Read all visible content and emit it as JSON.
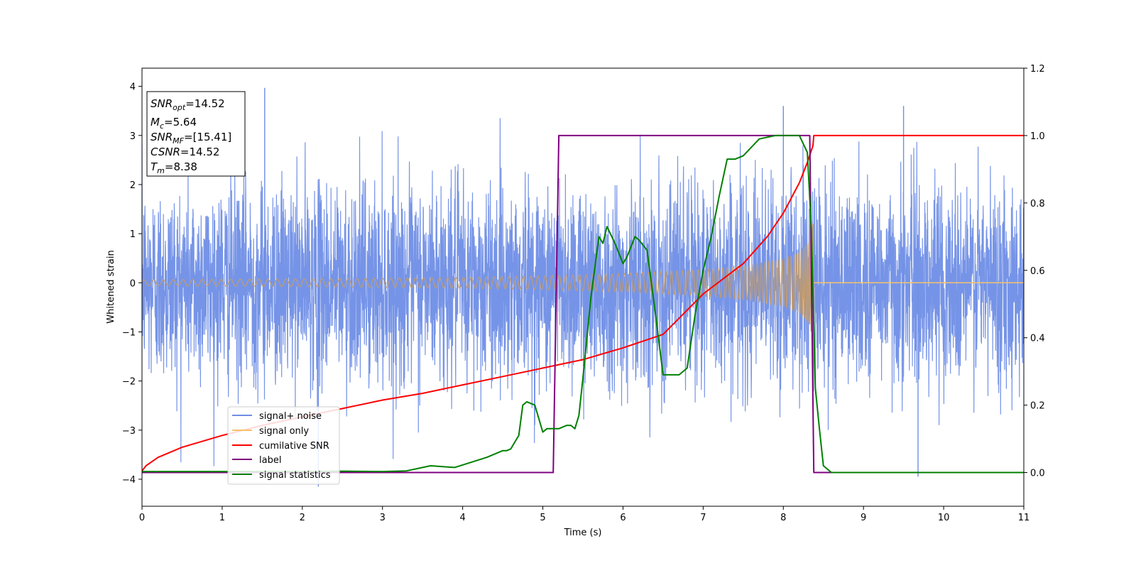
{
  "chart_data": {
    "type": "line",
    "xlabel": "Time (s)",
    "ylabel_left": "Whitened strain",
    "ylabel_right": "",
    "xlim": [
      0,
      11
    ],
    "ylim_left": [
      -4.55,
      4.37
    ],
    "ylim_right": [
      -0.1,
      1.2
    ],
    "x_ticks": [
      "0",
      "1",
      "2",
      "3",
      "4",
      "5",
      "6",
      "7",
      "8",
      "9",
      "10",
      "11"
    ],
    "y_left_ticks": [
      "4",
      "3",
      "2",
      "1",
      "0",
      "−1",
      "−2",
      "−3",
      "−4"
    ],
    "y_right_ticks": [
      "1.2",
      "1.0",
      "0.8",
      "0.6",
      "0.4",
      "0.2",
      "0.0"
    ],
    "grid": false,
    "info_box": {
      "snr_opt": {
        "sym": "SNR",
        "sub": "opt",
        "val": "=14.52"
      },
      "mc": {
        "sym": "M",
        "sub": "c",
        "val": "=5.64"
      },
      "snr_mf": {
        "sym": "SNR",
        "sub": "MF",
        "val": "=[15.41]"
      },
      "csnr": {
        "sym": "CSNR",
        "sub": "",
        "val": "=14.52"
      },
      "tm": {
        "sym": "T",
        "sub": "m",
        "val": "=8.38"
      }
    },
    "legend": {
      "placement": "lower-left",
      "entries": [
        {
          "label": "signal+ noise",
          "color": "#6f8ee6"
        },
        {
          "label": "signal only",
          "color": "#f5c26b"
        },
        {
          "label": "cumilative SNR",
          "color": "#ff0000"
        },
        {
          "label": "label",
          "color": "#800080"
        },
        {
          "label": "signal statistics",
          "color": "#008000"
        }
      ]
    },
    "series": [
      {
        "name": "signal+ noise",
        "axis": "left",
        "color": "#6f8ee6",
        "note_visible": "dense noisy band roughly within -3.2..3.3 with spikes to about 3.97 and -4.15",
        "notable_points": [
          [
            1.53,
            3.97
          ],
          [
            2.2,
            -4.15
          ],
          [
            9.68,
            -3.95
          ],
          [
            9.5,
            3.6
          ],
          [
            8.0,
            3.6
          ]
        ]
      },
      {
        "name": "signal only",
        "axis": "left",
        "color": "#f5c26b",
        "envelope": {
          "x": [
            0,
            2,
            4,
            5,
            6,
            7,
            7.5,
            8,
            8.2,
            8.33,
            8.38
          ],
          "amp": [
            0.06,
            0.08,
            0.11,
            0.14,
            0.19,
            0.27,
            0.34,
            0.48,
            0.62,
            0.85,
            1.35
          ]
        },
        "after_merger": [
          [
            8.38,
            0
          ],
          [
            11,
            0
          ]
        ]
      },
      {
        "name": "cumilative SNR",
        "axis": "right",
        "color": "#ff0000",
        "x": [
          0,
          0.05,
          0.2,
          0.5,
          1,
          1.5,
          2,
          2.5,
          3,
          3.5,
          4,
          4.5,
          5,
          5.5,
          6,
          6.5,
          7,
          7.5,
          7.8,
          8.0,
          8.2,
          8.3,
          8.37,
          8.38,
          11
        ],
        "y": [
          0.005,
          0.02,
          0.045,
          0.075,
          0.11,
          0.14,
          0.165,
          0.19,
          0.215,
          0.235,
          0.26,
          0.285,
          0.31,
          0.335,
          0.37,
          0.41,
          0.53,
          0.62,
          0.7,
          0.77,
          0.86,
          0.92,
          0.97,
          1.0,
          1.0
        ]
      },
      {
        "name": "label",
        "axis": "right",
        "color": "#800080",
        "x": [
          0,
          5.13,
          5.2,
          8.33,
          8.38,
          11
        ],
        "y": [
          0,
          0,
          1,
          1,
          0,
          0
        ]
      },
      {
        "name": "signal statistics",
        "axis": "right",
        "color": "#008000",
        "x": [
          0,
          1,
          2,
          2.5,
          3,
          3.3,
          3.6,
          3.9,
          4.1,
          4.3,
          4.5,
          4.55,
          4.6,
          4.7,
          4.75,
          4.8,
          4.9,
          5.0,
          5.05,
          5.1,
          5.2,
          5.3,
          5.35,
          5.4,
          5.45,
          5.5,
          5.6,
          5.7,
          5.75,
          5.8,
          5.9,
          6.0,
          6.05,
          6.15,
          6.2,
          6.3,
          6.4,
          6.5,
          6.6,
          6.7,
          6.8,
          6.9,
          7.0,
          7.1,
          7.2,
          7.3,
          7.4,
          7.5,
          7.7,
          7.9,
          8.1,
          8.2,
          8.3,
          8.35,
          8.4,
          8.45,
          8.5,
          8.6,
          8.7,
          11
        ],
        "y": [
          0.003,
          0.003,
          0.003,
          0.004,
          0.003,
          0.005,
          0.02,
          0.015,
          0.03,
          0.045,
          0.065,
          0.065,
          0.07,
          0.11,
          0.2,
          0.21,
          0.2,
          0.12,
          0.13,
          0.13,
          0.13,
          0.14,
          0.14,
          0.13,
          0.17,
          0.28,
          0.52,
          0.7,
          0.68,
          0.73,
          0.68,
          0.62,
          0.64,
          0.7,
          0.69,
          0.66,
          0.48,
          0.29,
          0.29,
          0.29,
          0.31,
          0.47,
          0.6,
          0.7,
          0.82,
          0.93,
          0.93,
          0.94,
          0.99,
          1.0,
          1.0,
          1.0,
          0.95,
          0.72,
          0.25,
          0.13,
          0.02,
          0.0,
          0.0,
          0.0
        ]
      }
    ]
  }
}
